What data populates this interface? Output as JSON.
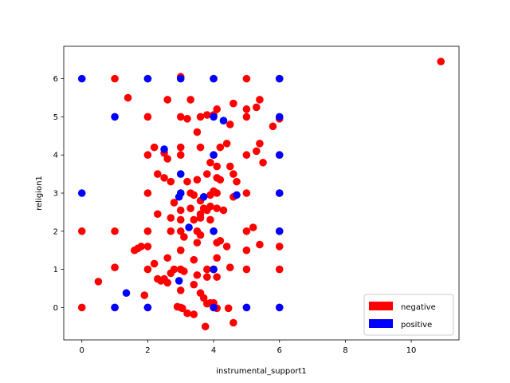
{
  "chart_data": {
    "type": "scatter",
    "title": "",
    "xlabel": "instrumental_support1",
    "ylabel": "religion1",
    "xlim": [
      -0.55,
      11.45
    ],
    "ylim": [
      -0.85,
      6.85
    ],
    "xticks": [
      0,
      2,
      4,
      6,
      8,
      10
    ],
    "yticks": [
      0,
      1,
      2,
      3,
      4,
      5,
      6
    ],
    "grid": false,
    "legend_position": "lower-right",
    "series": [
      {
        "name": "negative",
        "color": "#ff0000",
        "points": [
          [
            10.9,
            6.45
          ],
          [
            1.0,
            6.0
          ],
          [
            2.0,
            6.0
          ],
          [
            3.0,
            6.05
          ],
          [
            4.0,
            6.0
          ],
          [
            5.0,
            6.0
          ],
          [
            6.0,
            6.0
          ],
          [
            1.4,
            5.5
          ],
          [
            2.6,
            5.45
          ],
          [
            3.3,
            5.45
          ],
          [
            3.8,
            5.05
          ],
          [
            4.1,
            5.2
          ],
          [
            4.6,
            5.35
          ],
          [
            5.0,
            5.2
          ],
          [
            5.3,
            5.25
          ],
          [
            5.4,
            5.45
          ],
          [
            2.0,
            5.0
          ],
          [
            3.0,
            5.0
          ],
          [
            3.2,
            4.95
          ],
          [
            3.6,
            5.0
          ],
          [
            4.0,
            5.05
          ],
          [
            4.5,
            4.8
          ],
          [
            5.0,
            5.0
          ],
          [
            5.8,
            4.75
          ],
          [
            6.0,
            4.95
          ],
          [
            3.5,
            4.6
          ],
          [
            2.2,
            4.2
          ],
          [
            3.0,
            4.2
          ],
          [
            3.6,
            4.2
          ],
          [
            4.2,
            4.2
          ],
          [
            4.4,
            4.3
          ],
          [
            5.3,
            4.1
          ],
          [
            5.4,
            4.3
          ],
          [
            2.0,
            4.0
          ],
          [
            2.5,
            4.05
          ],
          [
            3.0,
            4.0
          ],
          [
            4.0,
            4.0
          ],
          [
            5.0,
            4.0
          ],
          [
            6.0,
            4.0
          ],
          [
            2.6,
            3.9
          ],
          [
            5.5,
            3.8
          ],
          [
            3.9,
            3.8
          ],
          [
            4.1,
            3.7
          ],
          [
            4.5,
            3.7
          ],
          [
            3.5,
            3.35
          ],
          [
            3.8,
            3.5
          ],
          [
            4.6,
            3.5
          ],
          [
            2.3,
            3.5
          ],
          [
            2.5,
            3.4
          ],
          [
            2.7,
            3.3
          ],
          [
            3.2,
            3.3
          ],
          [
            4.1,
            3.4
          ],
          [
            4.2,
            3.35
          ],
          [
            4.7,
            3.3
          ],
          [
            2.0,
            3.0
          ],
          [
            3.0,
            3.0
          ],
          [
            3.3,
            3.0
          ],
          [
            3.4,
            2.95
          ],
          [
            3.6,
            2.8
          ],
          [
            3.9,
            2.95
          ],
          [
            4.0,
            3.05
          ],
          [
            4.1,
            3.0
          ],
          [
            4.6,
            2.9
          ],
          [
            5.0,
            3.0
          ],
          [
            6.0,
            3.0
          ],
          [
            2.8,
            2.75
          ],
          [
            3.0,
            2.55
          ],
          [
            3.3,
            2.6
          ],
          [
            3.7,
            2.6
          ],
          [
            3.8,
            2.55
          ],
          [
            3.9,
            2.65
          ],
          [
            4.1,
            2.6
          ],
          [
            4.3,
            2.55
          ],
          [
            2.3,
            2.45
          ],
          [
            3.6,
            2.45
          ],
          [
            2.7,
            2.35
          ],
          [
            3.0,
            2.3
          ],
          [
            3.4,
            2.3
          ],
          [
            3.6,
            2.35
          ],
          [
            3.9,
            2.3
          ],
          [
            0.0,
            2.0
          ],
          [
            1.0,
            2.0
          ],
          [
            2.0,
            2.0
          ],
          [
            2.7,
            2.0
          ],
          [
            3.0,
            2.0
          ],
          [
            3.5,
            2.0
          ],
          [
            4.0,
            2.0
          ],
          [
            5.0,
            2.0
          ],
          [
            6.0,
            2.0
          ],
          [
            3.6,
            1.9
          ],
          [
            3.1,
            1.85
          ],
          [
            5.2,
            2.1
          ],
          [
            4.1,
            1.7
          ],
          [
            4.2,
            1.75
          ],
          [
            3.5,
            1.7
          ],
          [
            4.4,
            1.6
          ],
          [
            5.4,
            1.65
          ],
          [
            6.0,
            1.6
          ],
          [
            1.6,
            1.5
          ],
          [
            1.8,
            1.6
          ],
          [
            1.7,
            1.55
          ],
          [
            2.0,
            1.6
          ],
          [
            3.0,
            1.5
          ],
          [
            5.0,
            1.5
          ],
          [
            2.6,
            1.3
          ],
          [
            3.4,
            1.25
          ],
          [
            4.1,
            1.3
          ],
          [
            2.2,
            1.15
          ],
          [
            1.0,
            1.05
          ],
          [
            2.0,
            1.0
          ],
          [
            2.8,
            1.0
          ],
          [
            3.0,
            1.0
          ],
          [
            3.1,
            0.95
          ],
          [
            3.8,
            1.0
          ],
          [
            4.0,
            1.0
          ],
          [
            4.5,
            1.05
          ],
          [
            5.0,
            1.0
          ],
          [
            6.0,
            1.0
          ],
          [
            2.7,
            0.9
          ],
          [
            3.5,
            0.85
          ],
          [
            3.8,
            0.8
          ],
          [
            4.1,
            0.8
          ],
          [
            2.3,
            0.75
          ],
          [
            2.5,
            0.75
          ],
          [
            2.4,
            0.7
          ],
          [
            2.6,
            0.65
          ],
          [
            0.5,
            0.68
          ],
          [
            3.4,
            0.6
          ],
          [
            3.0,
            0.45
          ],
          [
            1.9,
            0.32
          ],
          [
            3.6,
            0.38
          ],
          [
            3.7,
            0.25
          ],
          [
            3.9,
            0.12
          ],
          [
            4.0,
            0.12
          ],
          [
            3.8,
            0.1
          ],
          [
            0.0,
            0.0
          ],
          [
            1.0,
            0.0
          ],
          [
            2.0,
            0.0
          ],
          [
            2.9,
            0.02
          ],
          [
            3.0,
            0.0
          ],
          [
            3.05,
            -0.02
          ],
          [
            4.0,
            0.0
          ],
          [
            4.1,
            -0.02
          ],
          [
            4.45,
            -0.02
          ],
          [
            5.0,
            0.0
          ],
          [
            6.0,
            0.0
          ],
          [
            3.2,
            -0.15
          ],
          [
            3.4,
            -0.18
          ],
          [
            4.6,
            -0.4
          ],
          [
            3.75,
            -0.5
          ]
        ]
      },
      {
        "name": "positive",
        "color": "#0000ff",
        "points": [
          [
            0.0,
            6.0
          ],
          [
            2.0,
            6.0
          ],
          [
            3.0,
            6.0
          ],
          [
            4.0,
            6.0
          ],
          [
            6.0,
            6.0
          ],
          [
            1.0,
            5.0
          ],
          [
            4.0,
            5.0
          ],
          [
            4.3,
            4.9
          ],
          [
            6.0,
            5.0
          ],
          [
            2.5,
            4.15
          ],
          [
            4.0,
            4.0
          ],
          [
            6.0,
            4.0
          ],
          [
            3.0,
            3.5
          ],
          [
            0.0,
            3.0
          ],
          [
            3.0,
            3.0
          ],
          [
            2.95,
            2.9
          ],
          [
            3.7,
            2.9
          ],
          [
            4.7,
            2.95
          ],
          [
            6.0,
            3.0
          ],
          [
            3.25,
            2.1
          ],
          [
            4.0,
            2.0
          ],
          [
            6.0,
            2.0
          ],
          [
            4.0,
            1.0
          ],
          [
            2.95,
            0.7
          ],
          [
            1.35,
            0.38
          ],
          [
            1.0,
            0.0
          ],
          [
            2.0,
            0.0
          ],
          [
            4.0,
            0.0
          ],
          [
            5.0,
            0.0
          ],
          [
            6.0,
            0.0
          ]
        ]
      }
    ]
  },
  "legend": {
    "items": [
      {
        "label": "negative",
        "color": "#ff0000"
      },
      {
        "label": "positive",
        "color": "#0000ff"
      }
    ]
  }
}
